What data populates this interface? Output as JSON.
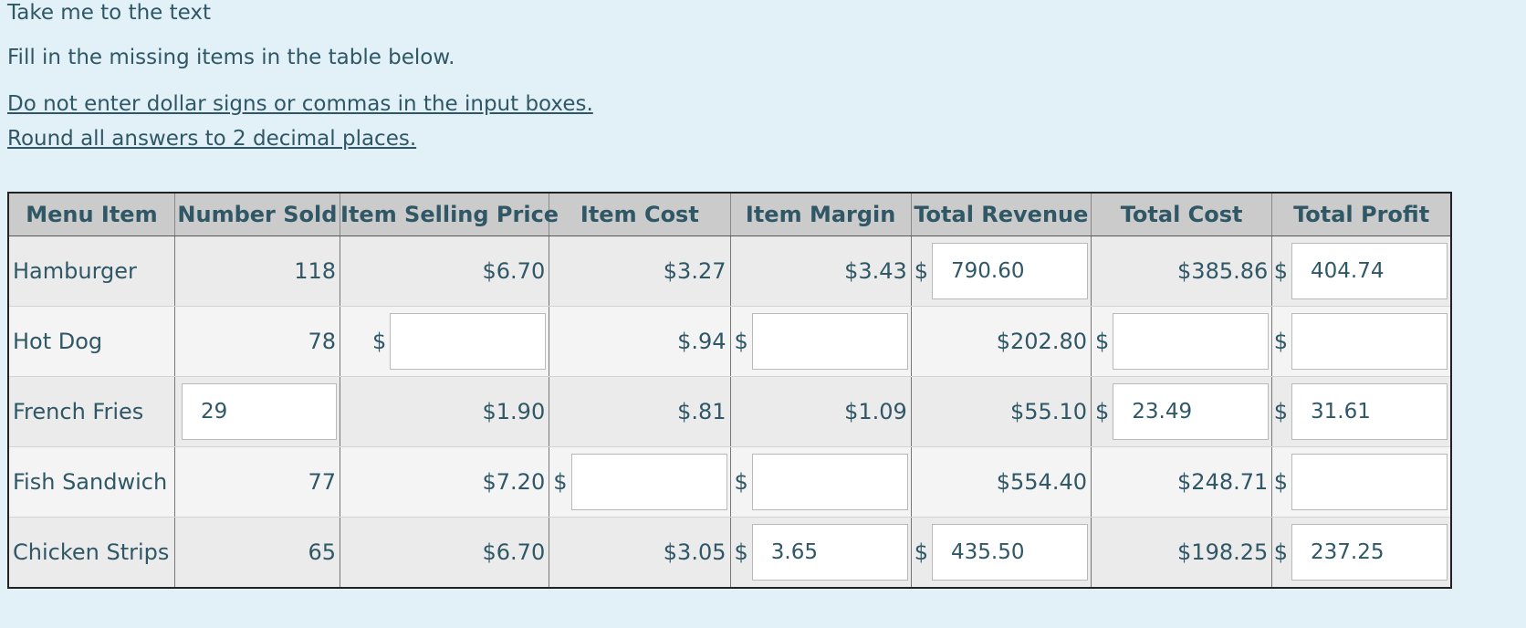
{
  "skip_link": "Take me to the text",
  "instruction": "Fill in the missing items in the table below.",
  "notes": [
    "Do not enter dollar signs or commas in the input boxes.",
    "Round all answers to 2 decimal places."
  ],
  "table": {
    "headers": [
      "Menu Item",
      "Number Sold",
      "Item Selling Price",
      "Item Cost",
      "Item Margin",
      "Total Revenue",
      "Total Cost",
      "Total Profit"
    ],
    "currency_symbol": "$",
    "rows": [
      {
        "item": "Hamburger",
        "number_sold": "118",
        "selling_price": "$6.70",
        "item_cost": "$3.27",
        "item_margin": "$3.43",
        "total_revenue_input": "790.60",
        "total_cost": "$385.86",
        "total_profit_input": "404.74"
      },
      {
        "item": "Hot Dog",
        "number_sold": "78",
        "selling_price_input": "",
        "item_cost": "$.94",
        "item_margin_input": "",
        "total_revenue": "$202.80",
        "total_cost_input": "",
        "total_profit_input": ""
      },
      {
        "item": "French Fries",
        "number_sold_input": "29",
        "selling_price": "$1.90",
        "item_cost": "$.81",
        "item_margin": "$1.09",
        "total_revenue": "$55.10",
        "total_cost_input": "23.49",
        "total_profit_input": "31.61"
      },
      {
        "item": "Fish Sandwich",
        "number_sold": "77",
        "selling_price": "$7.20",
        "item_cost_input": "",
        "item_margin_input": "",
        "total_revenue": "$554.40",
        "total_cost": "$248.71",
        "total_profit_input": ""
      },
      {
        "item": "Chicken Strips",
        "number_sold": "65",
        "selling_price": "$6.70",
        "item_cost": "$3.05",
        "item_margin_input": "3.65",
        "total_revenue_input": "435.50",
        "total_cost": "$198.25",
        "total_profit_input": "237.25"
      }
    ]
  }
}
